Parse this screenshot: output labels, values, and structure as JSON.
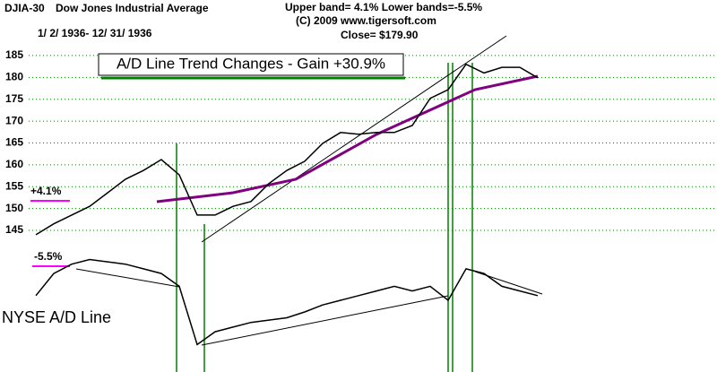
{
  "chart_data": [
    {
      "type": "line",
      "header": [
        "DJIA-30",
        "Dow Jones Industrial Average",
        "1/ 2/ 1936- 12/ 31/ 1936",
        "Upper band= 4.1%   Lower bands=-5.5%",
        "(C) 2009 www.tigersoft.com",
        "Close= $179.90"
      ],
      "title": "A/D Line Trend Changes - Gain +30.9%",
      "annotations": [
        "+4.1%",
        "-5.5%"
      ],
      "series": [
        {
          "name": "DJIA-30",
          "color": "#000000",
          "values": [
            144,
            146.5,
            148.5,
            150.5,
            153.6,
            156.7,
            158.7,
            161.2,
            157.7,
            148.5,
            148.5,
            150.5,
            151.6,
            155.7,
            158.7,
            160.8,
            164.9,
            167.4,
            167,
            167.4,
            167.4,
            169,
            175.2,
            177.2,
            183,
            181,
            182.3,
            182.3,
            179.9
          ]
        }
      ],
      "ylim": [
        112.6,
        197.7
      ],
      "yticks": [
        145,
        150,
        155,
        160,
        165,
        170,
        175,
        180,
        185
      ],
      "grid": true,
      "grid_color": "#008000"
    },
    {
      "type": "line",
      "label": "NYSE A/D Line",
      "series": [
        {
          "name": "NYSE A/D Line",
          "color": "#000000",
          "values": [
            54,
            73,
            81,
            85,
            83,
            81,
            77,
            73,
            62,
            12,
            23,
            27,
            31,
            33,
            35,
            40,
            46,
            50,
            54,
            58,
            62,
            58,
            62,
            50,
            77,
            73,
            62,
            58,
            54
          ]
        }
      ],
      "ylim": [
        0,
        100
      ]
    }
  ]
}
